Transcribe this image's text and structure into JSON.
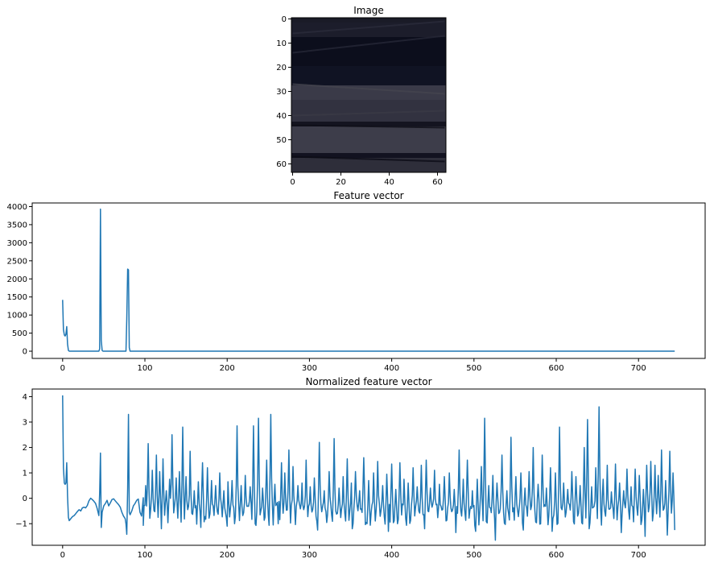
{
  "figure": {
    "panel_titles": [
      "Image",
      "Feature vector",
      "Normalized feature vector"
    ]
  },
  "chart_data": [
    {
      "type": "heatmap",
      "title": "Image",
      "xlabel": "",
      "ylabel": "",
      "xlim": [
        -0.5,
        63.5
      ],
      "ylim": [
        63.5,
        -0.5
      ],
      "xticks": [
        0,
        20,
        40,
        60
      ],
      "yticks": [
        0,
        10,
        20,
        30,
        40,
        50,
        60
      ],
      "grid": false,
      "bands": [
        {
          "y_start": 0,
          "y_end": 2,
          "color": "#1a1b27"
        },
        {
          "y_start": 2,
          "y_end": 8,
          "color": "#1c1d2b"
        },
        {
          "y_start": 8,
          "y_end": 20,
          "color": "#0c0e1c"
        },
        {
          "y_start": 20,
          "y_end": 28,
          "color": "#101323"
        },
        {
          "y_start": 28,
          "y_end": 34,
          "color": "#3a3a48"
        },
        {
          "y_start": 34,
          "y_end": 43,
          "color": "#323240"
        },
        {
          "y_start": 43,
          "y_end": 45,
          "color": "#141420"
        },
        {
          "y_start": 45,
          "y_end": 56,
          "color": "#3d3d4a"
        },
        {
          "y_start": 56,
          "y_end": 58,
          "color": "#121220"
        },
        {
          "y_start": 58,
          "y_end": 64,
          "color": "#2e2e3a"
        }
      ]
    },
    {
      "type": "line",
      "title": "Feature vector",
      "xlabel": "",
      "ylabel": "",
      "xlim": [
        -37,
        781
      ],
      "ylim": [
        -200,
        4100
      ],
      "xticks": [
        0,
        100,
        200,
        300,
        400,
        500,
        600,
        700
      ],
      "yticks": [
        0,
        500,
        1000,
        1500,
        2000,
        2500,
        3000,
        3500,
        4000
      ],
      "grid": false,
      "color": "#1f77b4",
      "series": [
        {
          "x": [
            0,
            1,
            2,
            3,
            4,
            5,
            6,
            7,
            8,
            9,
            44,
            45,
            46,
            47,
            48,
            49,
            77,
            78,
            79,
            80,
            81,
            82,
            744
          ],
          "y": [
            1420,
            600,
            450,
            420,
            470,
            680,
            200,
            20,
            0,
            0,
            0,
            60,
            3930,
            300,
            20,
            0,
            0,
            900,
            2270,
            2250,
            100,
            0,
            0
          ]
        }
      ]
    },
    {
      "type": "line",
      "title": "Normalized feature vector",
      "xlabel": "",
      "ylabel": "",
      "xlim": [
        -37,
        781
      ],
      "ylim": [
        -1.85,
        4.3
      ],
      "xticks": [
        0,
        100,
        200,
        300,
        400,
        500,
        600,
        700
      ],
      "yticks": [
        -1,
        0,
        1,
        2,
        3,
        4
      ],
      "grid": false,
      "color": "#1f77b4",
      "series": [
        {
          "x": [
            0,
            1,
            2,
            3,
            4,
            5,
            6,
            7,
            8,
            10,
            12,
            14,
            16,
            18,
            20,
            22,
            24,
            26,
            28,
            30,
            32,
            34,
            36,
            38,
            40,
            42,
            44,
            45,
            46,
            47,
            48,
            50,
            52,
            54,
            56,
            58,
            60,
            62,
            64,
            66,
            68,
            70,
            72,
            74,
            76,
            77,
            78,
            79,
            80,
            81,
            82,
            84,
            86,
            88,
            90,
            92,
            94,
            96,
            98
          ],
          "y": [
            4.05,
            1.2,
            0.6,
            0.55,
            0.6,
            1.4,
            0.1,
            -0.75,
            -0.88,
            -0.8,
            -0.72,
            -0.68,
            -0.6,
            -0.52,
            -0.45,
            -0.5,
            -0.38,
            -0.35,
            -0.38,
            -0.28,
            -0.1,
            0.0,
            -0.05,
            -0.12,
            -0.2,
            -0.4,
            -0.68,
            0.2,
            1.78,
            -1.15,
            -0.55,
            -0.3,
            -0.2,
            -0.08,
            -0.3,
            -0.18,
            -0.05,
            -0.02,
            -0.1,
            -0.18,
            -0.25,
            -0.35,
            -0.55,
            -0.7,
            -0.8,
            -1.0,
            -1.42,
            0.4,
            3.3,
            -0.55,
            -0.65,
            -0.5,
            -0.3,
            -0.2,
            -0.08,
            -0.03,
            -0.55,
            -0.7,
            0.02
          ]
        }
      ],
      "oscillation": {
        "x_start": 98,
        "x_end": 744,
        "step": 1,
        "baseline_approx": -0.6,
        "spikes": [
          [
            101,
            0.5
          ],
          [
            104,
            2.15
          ],
          [
            109,
            1.1
          ],
          [
            114,
            1.7
          ],
          [
            118,
            1.05
          ],
          [
            122,
            1.55
          ],
          [
            126,
            0.3
          ],
          [
            130,
            0.75
          ],
          [
            133,
            2.5
          ],
          [
            138,
            0.8
          ],
          [
            142,
            1.05
          ],
          [
            146,
            2.8
          ],
          [
            150,
            0.85
          ],
          [
            155,
            1.85
          ],
          [
            160,
            0.3
          ],
          [
            165,
            0.65
          ],
          [
            170,
            1.4
          ],
          [
            176,
            1.2
          ],
          [
            181,
            0.7
          ],
          [
            186,
            0.5
          ],
          [
            191,
            1.0
          ],
          [
            196,
            0.3
          ],
          [
            201,
            0.65
          ],
          [
            206,
            0.7
          ],
          [
            212,
            2.85
          ],
          [
            217,
            0.5
          ],
          [
            222,
            0.9
          ],
          [
            228,
            0.45
          ],
          [
            232,
            2.85
          ],
          [
            238,
            3.15
          ],
          [
            243,
            0.4
          ],
          [
            248,
            1.5
          ],
          [
            253,
            3.3
          ],
          [
            258,
            0.55
          ],
          [
            262,
            0.6
          ],
          [
            266,
            1.4
          ],
          [
            270,
            1.0
          ],
          [
            275,
            1.9
          ],
          [
            280,
            1.25
          ],
          [
            286,
            0.5
          ],
          [
            291,
            0.6
          ],
          [
            296,
            1.5
          ],
          [
            301,
            0.45
          ],
          [
            306,
            0.8
          ],
          [
            312,
            2.2
          ],
          [
            318,
            0.3
          ],
          [
            324,
            1.05
          ],
          [
            330,
            2.35
          ],
          [
            336,
            0.4
          ],
          [
            341,
            0.85
          ],
          [
            346,
            1.55
          ],
          [
            351,
            0.6
          ],
          [
            356,
            1.05
          ],
          [
            361,
            0.3
          ],
          [
            366,
            1.6
          ],
          [
            372,
            0.7
          ],
          [
            378,
            1.0
          ],
          [
            383,
            1.45
          ],
          [
            389,
            0.5
          ],
          [
            394,
            0.95
          ],
          [
            400,
            1.35
          ],
          [
            405,
            0.35
          ],
          [
            410,
            1.4
          ],
          [
            415,
            0.75
          ],
          [
            420,
            0.6
          ],
          [
            426,
            1.2
          ],
          [
            431,
            0.45
          ],
          [
            436,
            1.3
          ],
          [
            442,
            1.5
          ],
          [
            447,
            0.4
          ],
          [
            452,
            1.1
          ],
          [
            458,
            0.55
          ],
          [
            464,
            0.85
          ],
          [
            470,
            1.0
          ],
          [
            476,
            0.35
          ],
          [
            482,
            1.9
          ],
          [
            487,
            0.75
          ],
          [
            492,
            1.5
          ],
          [
            498,
            0.3
          ],
          [
            504,
            0.75
          ],
          [
            509,
            1.25
          ],
          [
            513,
            3.15
          ],
          [
            518,
            0.5
          ],
          [
            523,
            0.9
          ],
          [
            528,
            0.6
          ],
          [
            534,
            1.7
          ],
          [
            540,
            0.3
          ],
          [
            545,
            2.4
          ],
          [
            551,
            0.85
          ],
          [
            557,
            1.0
          ],
          [
            562,
            0.4
          ],
          [
            567,
            1.05
          ],
          [
            572,
            2.0
          ],
          [
            578,
            0.55
          ],
          [
            583,
            1.7
          ],
          [
            588,
            0.4
          ],
          [
            593,
            1.2
          ],
          [
            599,
            1.0
          ],
          [
            604,
            2.8
          ],
          [
            609,
            0.6
          ],
          [
            614,
            0.35
          ],
          [
            619,
            1.05
          ],
          [
            624,
            0.85
          ],
          [
            629,
            0.5
          ],
          [
            634,
            2.0
          ],
          [
            638,
            3.1
          ],
          [
            643,
            0.45
          ],
          [
            648,
            1.2
          ],
          [
            652,
            3.6
          ],
          [
            657,
            0.75
          ],
          [
            662,
            1.3
          ],
          [
            667,
            0.25
          ],
          [
            672,
            1.35
          ],
          [
            677,
            0.6
          ],
          [
            682,
            0.3
          ],
          [
            686,
            1.15
          ],
          [
            691,
            0.45
          ],
          [
            696,
            1.15
          ],
          [
            701,
            0.9
          ],
          [
            706,
            0.35
          ],
          [
            710,
            1.3
          ],
          [
            715,
            1.45
          ],
          [
            720,
            1.3
          ],
          [
            724,
            0.9
          ],
          [
            728,
            1.9
          ],
          [
            733,
            0.7
          ],
          [
            738,
            1.85
          ],
          [
            742,
            1.0
          ]
        ],
        "dips": [
          [
            120,
            -1.2
          ],
          [
            168,
            -1.15
          ],
          [
            200,
            -1.1
          ],
          [
            262,
            -1.0
          ],
          [
            310,
            -1.25
          ],
          [
            352,
            -1.2
          ],
          [
            396,
            -1.3
          ],
          [
            440,
            -1.2
          ],
          [
            478,
            -1.35
          ],
          [
            502,
            -1.3
          ],
          [
            526,
            -1.65
          ],
          [
            560,
            -1.25
          ],
          [
            595,
            -1.3
          ],
          [
            640,
            -1.2
          ],
          [
            679,
            -1.35
          ],
          [
            708,
            -1.5
          ],
          [
            735,
            -1.45
          ],
          [
            744,
            -1.25
          ]
        ]
      }
    }
  ]
}
